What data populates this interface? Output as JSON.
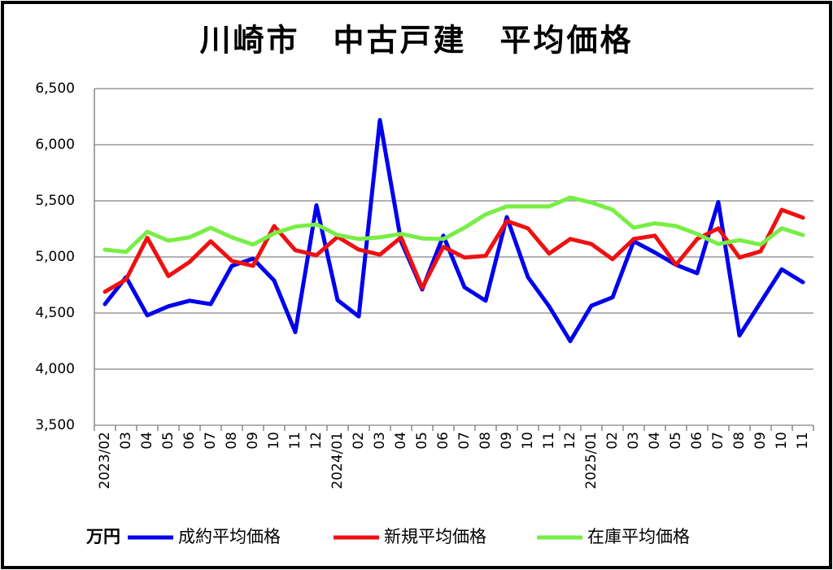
{
  "chart_data": {
    "type": "line",
    "title": "川崎市　中古戸建　平均価格",
    "unit": "万円",
    "categories": [
      "2023/02",
      "03",
      "04",
      "05",
      "06",
      "07",
      "08",
      "09",
      "10",
      "11",
      "12",
      "2024/01",
      "02",
      "03",
      "04",
      "05",
      "06",
      "07",
      "08",
      "09",
      "10",
      "11",
      "12",
      "2025/01",
      "02",
      "03",
      "04",
      "05",
      "06",
      "07",
      "08",
      "09",
      "10",
      "11"
    ],
    "series": [
      {
        "name": "成約平均価格",
        "color": "#0000ee",
        "values": [
          4580,
          4820,
          4480,
          4560,
          4610,
          4580,
          4920,
          4985,
          4790,
          4330,
          5460,
          4615,
          4470,
          6220,
          5140,
          4710,
          5190,
          4730,
          4610,
          5355,
          4820,
          4560,
          4250,
          4565,
          4640,
          5140,
          5040,
          4930,
          4855,
          5490,
          4300,
          4595,
          4890,
          4775
        ]
      },
      {
        "name": "新規平均価格",
        "color": "#ee1111",
        "values": [
          4690,
          4800,
          5170,
          4830,
          4955,
          5140,
          4965,
          4920,
          5275,
          5060,
          5015,
          5180,
          5065,
          5020,
          5175,
          4725,
          5090,
          4995,
          5010,
          5320,
          5255,
          5030,
          5160,
          5115,
          4980,
          5160,
          5190,
          4930,
          5160,
          5255,
          4995,
          5050,
          5420,
          5350
        ]
      },
      {
        "name": "在庫平均価格",
        "color": "#77ee44",
        "values": [
          5065,
          5045,
          5225,
          5145,
          5175,
          5260,
          5175,
          5110,
          5210,
          5270,
          5290,
          5195,
          5160,
          5175,
          5205,
          5165,
          5160,
          5260,
          5380,
          5450,
          5450,
          5450,
          5530,
          5485,
          5420,
          5260,
          5300,
          5275,
          5205,
          5115,
          5150,
          5110,
          5255,
          5195
        ]
      }
    ],
    "ylim": [
      3500,
      6500
    ],
    "yticks": [
      {
        "value": 3500,
        "label": "3,500"
      },
      {
        "value": 4000,
        "label": "4,000"
      },
      {
        "value": 4500,
        "label": "4,500"
      },
      {
        "value": 5000,
        "label": "5,000"
      },
      {
        "value": 5500,
        "label": "5,500"
      },
      {
        "value": 6000,
        "label": "6,000"
      },
      {
        "value": 6500,
        "label": "6,500"
      }
    ],
    "grid": true,
    "legend": "bottom"
  }
}
